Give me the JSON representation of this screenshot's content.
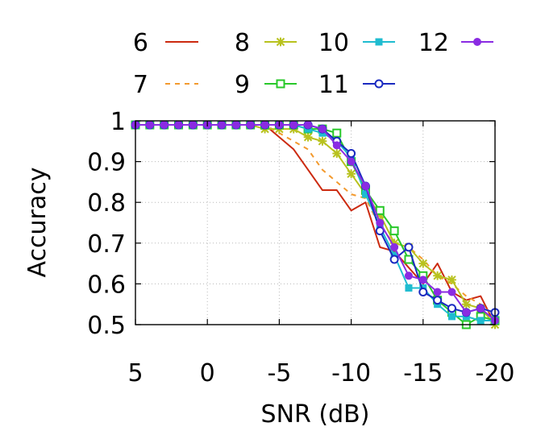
{
  "chart_data": {
    "type": "line",
    "xlabel": "SNR (dB)",
    "ylabel": "Accuracy",
    "xlim": [
      5,
      -20
    ],
    "ylim": [
      0.5,
      1
    ],
    "x_ticks": [
      5,
      0,
      -5,
      -10,
      -15,
      -20
    ],
    "x_tick_labels": [
      "5",
      "0",
      "-5",
      "-10",
      "-15",
      "-20"
    ],
    "y_ticks": [
      0.5,
      0.6,
      0.7,
      0.8,
      0.9,
      1
    ],
    "y_tick_labels": [
      "0.5",
      "0.6",
      "0.7",
      "0.8",
      "0.9",
      "1"
    ],
    "grid": true,
    "legend_position": "top",
    "x": [
      5,
      4,
      3,
      2,
      1,
      0,
      -1,
      -2,
      -3,
      -4,
      -5,
      -6,
      -7,
      -8,
      -9,
      -10,
      -11,
      -12,
      -13,
      -14,
      -15,
      -16,
      -17,
      -18,
      -19,
      -20
    ],
    "series": [
      {
        "name": "6",
        "color": "#cc2a10",
        "dash": "solid",
        "marker": "none",
        "values": [
          0.99,
          0.99,
          0.99,
          0.99,
          0.99,
          0.99,
          0.99,
          0.99,
          0.99,
          0.99,
          0.96,
          0.93,
          0.88,
          0.83,
          0.83,
          0.78,
          0.8,
          0.69,
          0.68,
          0.64,
          0.6,
          0.65,
          0.58,
          0.56,
          0.57,
          0.5
        ]
      },
      {
        "name": "7",
        "color": "#f39a2e",
        "dash": "dashed",
        "marker": "none",
        "values": [
          0.99,
          0.99,
          0.99,
          0.99,
          0.99,
          0.99,
          0.99,
          0.99,
          0.99,
          0.99,
          0.97,
          0.95,
          0.93,
          0.88,
          0.85,
          0.82,
          0.81,
          0.74,
          0.7,
          0.69,
          0.66,
          0.62,
          0.6,
          0.57,
          0.55,
          0.52
        ]
      },
      {
        "name": "8",
        "color": "#b8c21e",
        "dash": "solid",
        "marker": "star",
        "values": [
          0.99,
          0.99,
          0.99,
          0.99,
          0.99,
          0.99,
          0.99,
          0.99,
          0.99,
          0.98,
          0.98,
          0.98,
          0.96,
          0.95,
          0.92,
          0.87,
          0.82,
          0.77,
          0.7,
          0.69,
          0.65,
          0.62,
          0.61,
          0.55,
          0.54,
          0.5
        ]
      },
      {
        "name": "9",
        "color": "#28c82a",
        "dash": "solid",
        "marker": "square-open",
        "values": [
          0.99,
          0.99,
          0.99,
          0.99,
          0.99,
          0.99,
          0.99,
          0.99,
          0.99,
          0.99,
          0.99,
          0.99,
          0.98,
          0.98,
          0.97,
          0.9,
          0.83,
          0.78,
          0.73,
          0.66,
          0.62,
          0.56,
          0.53,
          0.5,
          0.52,
          0.51
        ]
      },
      {
        "name": "10",
        "color": "#1fbcd0",
        "dash": "solid",
        "marker": "square",
        "values": [
          0.99,
          0.99,
          0.99,
          0.99,
          0.99,
          0.99,
          0.99,
          0.99,
          0.99,
          0.99,
          0.99,
          0.99,
          0.98,
          0.97,
          0.95,
          0.91,
          0.82,
          0.74,
          0.67,
          0.59,
          0.59,
          0.55,
          0.52,
          0.52,
          0.51,
          0.51
        ]
      },
      {
        "name": "11",
        "color": "#1a2ac0",
        "dash": "solid",
        "marker": "circle-open",
        "values": [
          0.99,
          0.99,
          0.99,
          0.99,
          0.99,
          0.99,
          0.99,
          0.99,
          0.99,
          0.99,
          0.99,
          0.99,
          0.99,
          0.98,
          0.95,
          0.92,
          0.84,
          0.73,
          0.66,
          0.69,
          0.58,
          0.56,
          0.54,
          0.53,
          0.54,
          0.53
        ]
      },
      {
        "name": "12",
        "color": "#8a2be2",
        "dash": "solid",
        "marker": "circle",
        "values": [
          0.99,
          0.99,
          0.99,
          0.99,
          0.99,
          0.99,
          0.99,
          0.99,
          0.99,
          0.99,
          0.99,
          0.99,
          0.99,
          0.98,
          0.94,
          0.9,
          0.84,
          0.75,
          0.69,
          0.62,
          0.61,
          0.58,
          0.58,
          0.53,
          0.54,
          0.51
        ]
      }
    ]
  }
}
